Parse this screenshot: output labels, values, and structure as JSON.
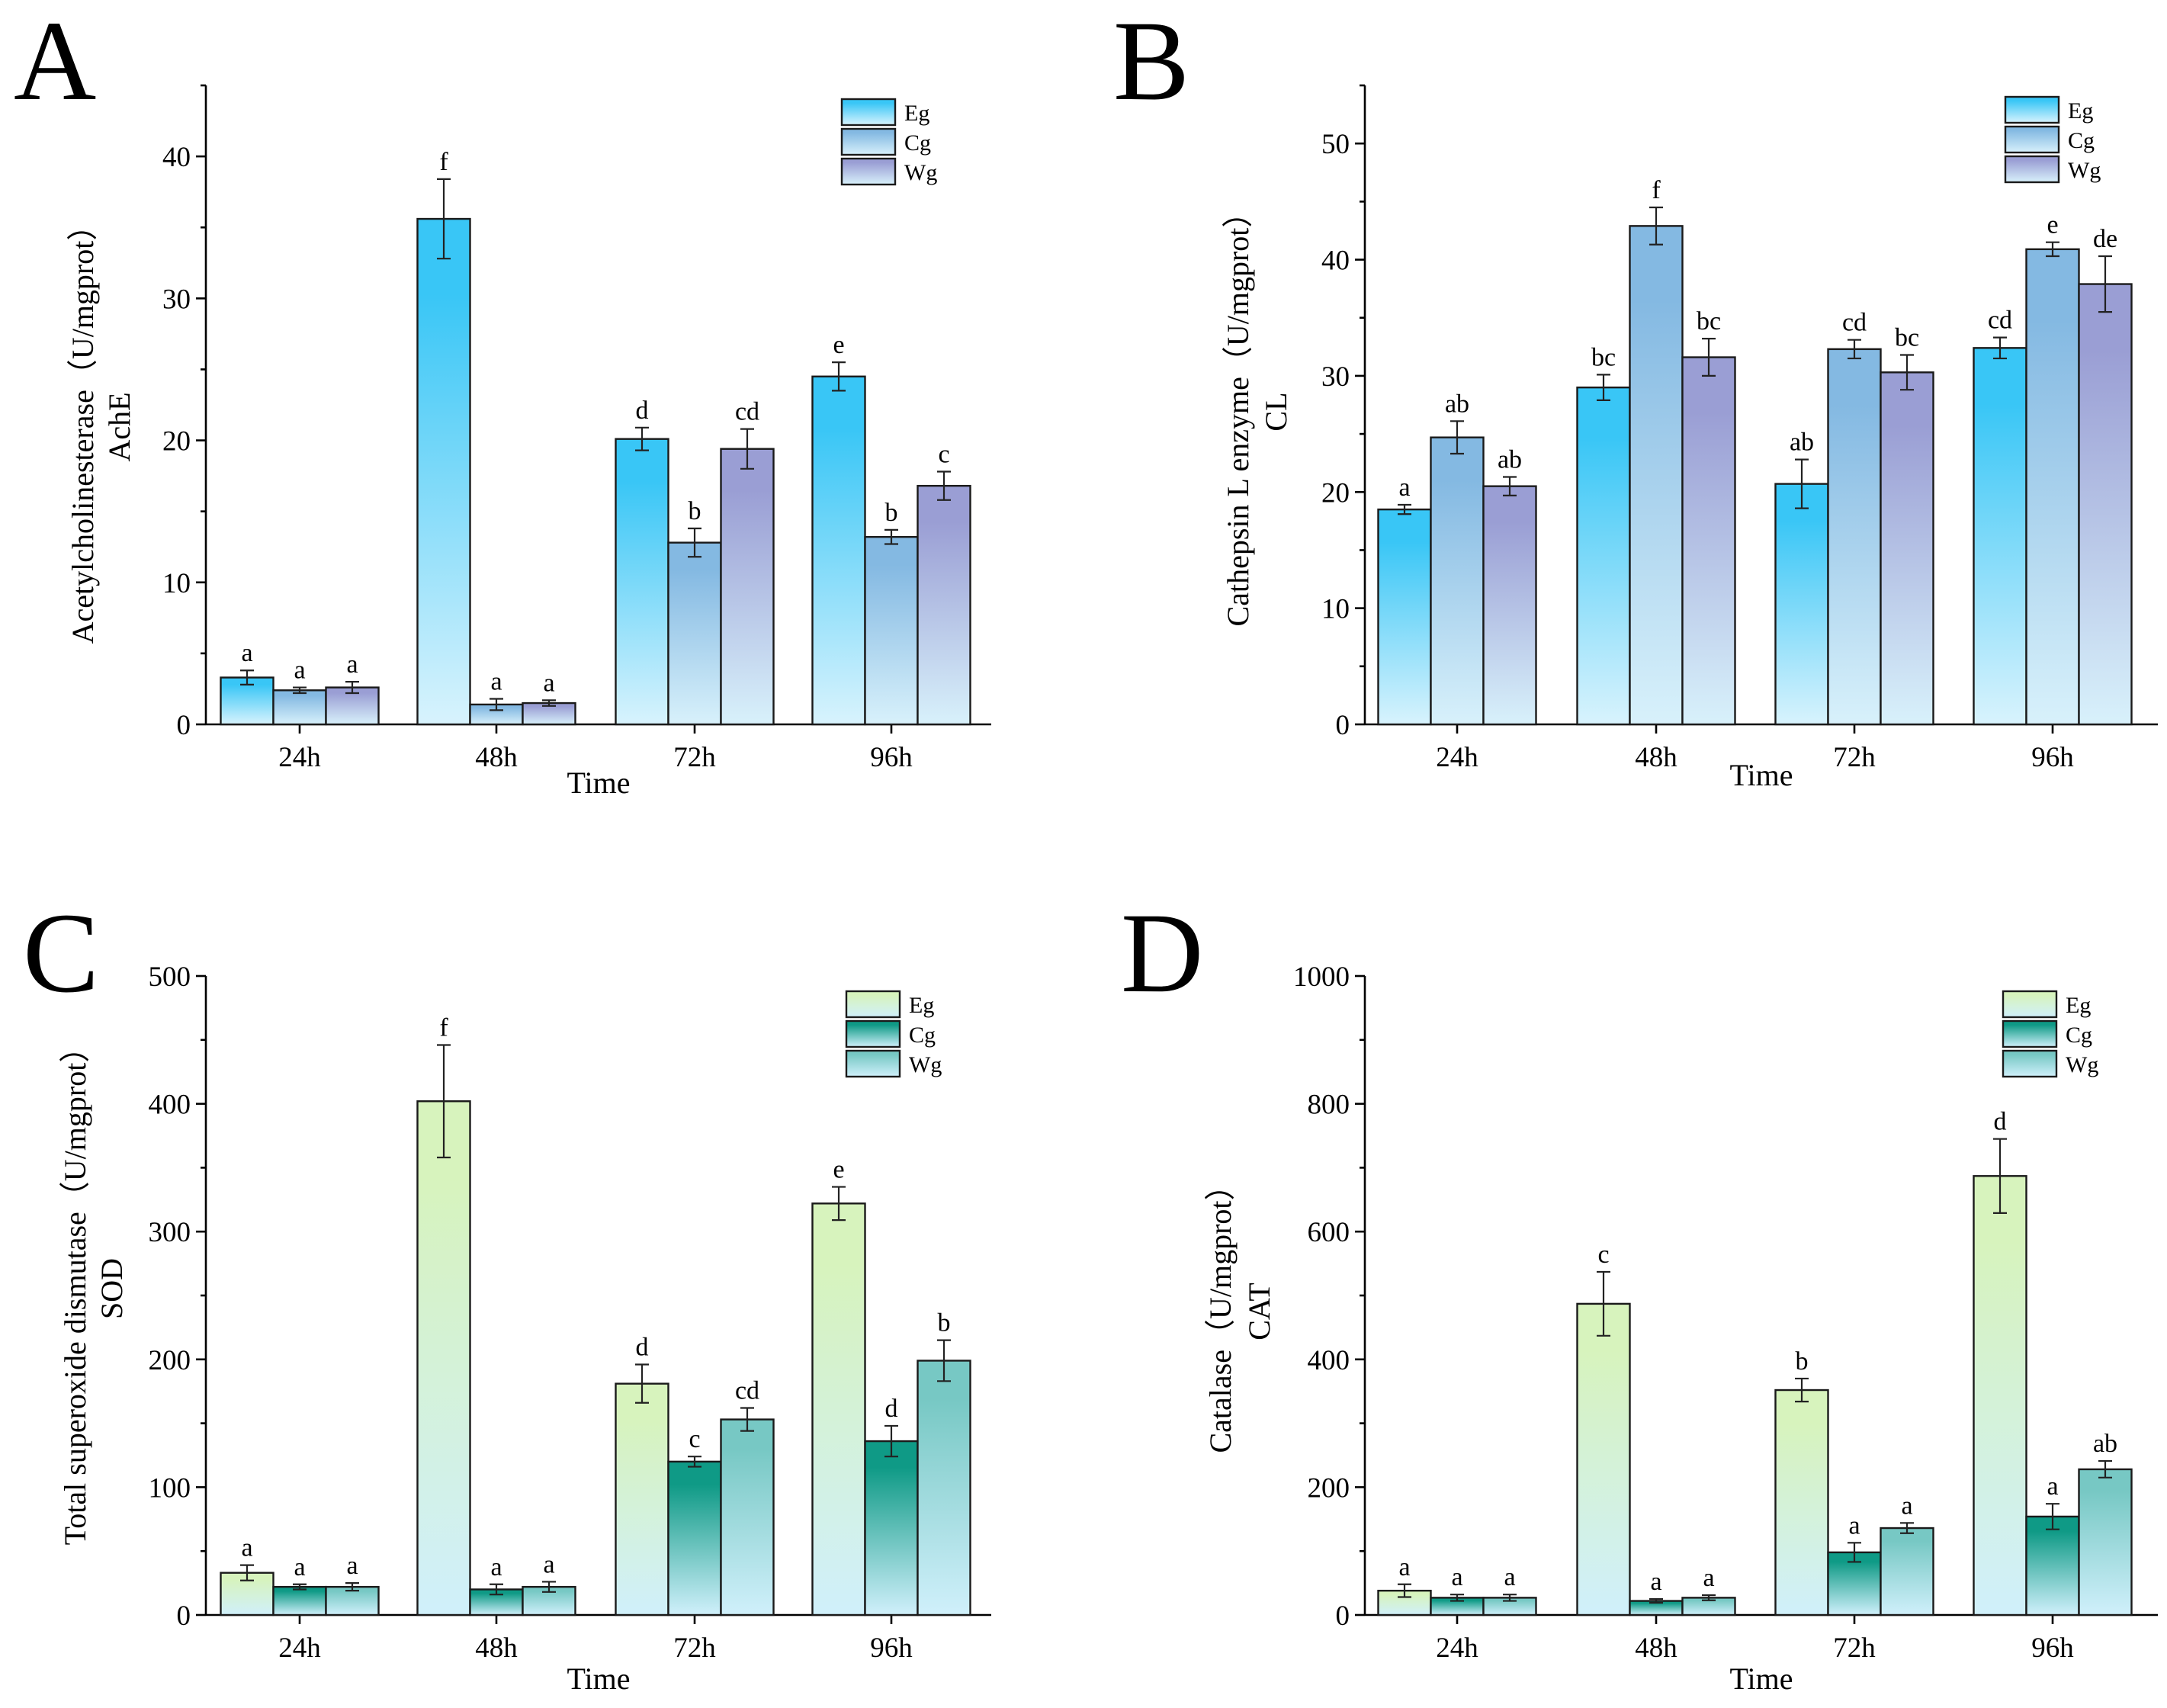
{
  "chart_data": [
    {
      "panel": "A",
      "type": "bar",
      "categories": [
        "24h",
        "48h",
        "72h",
        "96h"
      ],
      "xlabel": "Time",
      "ylabel": [
        "Acetylcholinesterase（U/mgprot）",
        "AchE"
      ],
      "ylim": [
        0,
        45
      ],
      "yticks": [
        0,
        10,
        20,
        30,
        40
      ],
      "palette": "blue",
      "series": [
        {
          "name": "Eg",
          "values": [
            3.3,
            35.6,
            20.1,
            24.5
          ],
          "errors": [
            0.5,
            2.8,
            0.8,
            1.0
          ],
          "labels": [
            "a",
            "f",
            "d",
            "e"
          ]
        },
        {
          "name": "Cg",
          "values": [
            2.4,
            1.4,
            12.8,
            13.2
          ],
          "errors": [
            0.2,
            0.4,
            1.0,
            0.5
          ],
          "labels": [
            "a",
            "a",
            "b",
            "b"
          ]
        },
        {
          "name": "Wg",
          "values": [
            2.6,
            1.5,
            19.4,
            16.8
          ],
          "errors": [
            0.4,
            0.2,
            1.4,
            1.0
          ],
          "labels": [
            "a",
            "a",
            "cd",
            "c"
          ]
        }
      ]
    },
    {
      "panel": "B",
      "type": "bar",
      "categories": [
        "24h",
        "48h",
        "72h",
        "96h"
      ],
      "xlabel": "Time",
      "ylabel": [
        "Cathepsin L enzyme（U/mgprot）",
        "CL"
      ],
      "ylim": [
        0,
        55
      ],
      "yticks": [
        0,
        10,
        20,
        30,
        40,
        50
      ],
      "palette": "blue",
      "series": [
        {
          "name": "Eg",
          "values": [
            18.5,
            29.0,
            20.7,
            32.4
          ],
          "errors": [
            0.4,
            1.1,
            2.1,
            0.9
          ],
          "labels": [
            "a",
            "bc",
            "ab",
            "cd"
          ]
        },
        {
          "name": "Cg",
          "values": [
            24.7,
            42.9,
            32.3,
            40.9
          ],
          "errors": [
            1.4,
            1.6,
            0.8,
            0.6
          ],
          "labels": [
            "ab",
            "f",
            "cd",
            "e"
          ]
        },
        {
          "name": "Wg",
          "values": [
            20.5,
            31.6,
            30.3,
            37.9
          ],
          "errors": [
            0.8,
            1.6,
            1.5,
            2.4
          ],
          "labels": [
            "ab",
            "bc",
            "bc",
            "de"
          ]
        }
      ]
    },
    {
      "panel": "C",
      "type": "bar",
      "categories": [
        "24h",
        "48h",
        "72h",
        "96h"
      ],
      "xlabel": "Time",
      "ylabel": [
        "Total superoxide dismutase（U/mgprot）",
        "SOD"
      ],
      "ylim": [
        0,
        500
      ],
      "yticks": [
        0,
        100,
        200,
        300,
        400,
        500
      ],
      "palette": "green",
      "series": [
        {
          "name": "Eg",
          "values": [
            33,
            402,
            181,
            322
          ],
          "errors": [
            6,
            44,
            15,
            13
          ],
          "labels": [
            "a",
            "f",
            "d",
            "e"
          ]
        },
        {
          "name": "Cg",
          "values": [
            22,
            20,
            120,
            136
          ],
          "errors": [
            2,
            4,
            4,
            12
          ],
          "labels": [
            "a",
            "a",
            "c",
            "d"
          ]
        },
        {
          "name": "Wg",
          "values": [
            22,
            22,
            153,
            199
          ],
          "errors": [
            3,
            4,
            9,
            16
          ],
          "labels": [
            "a",
            "a",
            "cd",
            "b"
          ]
        }
      ]
    },
    {
      "panel": "D",
      "type": "bar",
      "categories": [
        "24h",
        "48h",
        "72h",
        "96h"
      ],
      "xlabel": "Time",
      "ylabel": [
        "Catalase（U/mgprot）",
        "CAT"
      ],
      "ylim": [
        0,
        1000
      ],
      "yticks": [
        0,
        200,
        400,
        600,
        800,
        1000
      ],
      "palette": "green",
      "series": [
        {
          "name": "Eg",
          "values": [
            38,
            487,
            352,
            687
          ],
          "errors": [
            10,
            50,
            18,
            58
          ],
          "labels": [
            "a",
            "c",
            "b",
            "d"
          ]
        },
        {
          "name": "Cg",
          "values": [
            27,
            22,
            98,
            154
          ],
          "errors": [
            5,
            3,
            15,
            20
          ],
          "labels": [
            "a",
            "a",
            "a",
            "a"
          ]
        },
        {
          "name": "Wg",
          "values": [
            27,
            27,
            136,
            228
          ],
          "errors": [
            5,
            4,
            8,
            13
          ],
          "labels": [
            "a",
            "a",
            "a",
            "ab"
          ]
        }
      ]
    }
  ],
  "palettes": {
    "blue": {
      "Eg": [
        "#39c6f6",
        "#d8f3fd"
      ],
      "Cg": [
        "#84b9e2",
        "#d8f1fb"
      ],
      "Wg": [
        "#9a9ed4",
        "#d8f1fb"
      ]
    },
    "green": {
      "Eg": [
        "#d7f3bd",
        "#d0f0fb"
      ],
      "Cg": [
        "#0f9a86",
        "#d0f0fb"
      ],
      "Wg": [
        "#77c8c4",
        "#d0f0fb"
      ]
    }
  }
}
